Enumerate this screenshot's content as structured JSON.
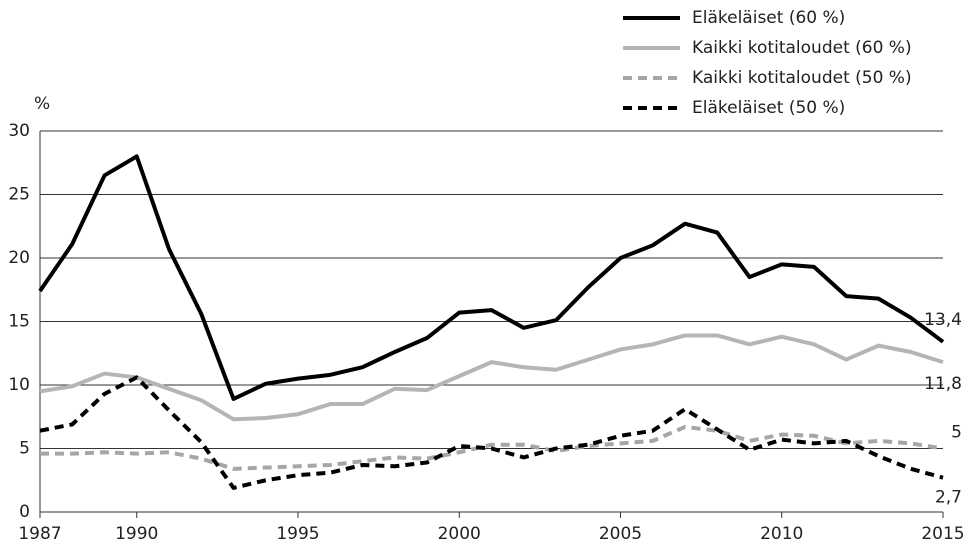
{
  "chart_data": {
    "type": "line",
    "y_label": "%",
    "x": [
      1987,
      1988,
      1989,
      1990,
      1991,
      1992,
      1993,
      1994,
      1995,
      1996,
      1997,
      1998,
      1999,
      2000,
      2001,
      2002,
      2003,
      2004,
      2005,
      2006,
      2007,
      2008,
      2009,
      2010,
      2011,
      2012,
      2013,
      2014,
      2015
    ],
    "xlim": [
      1987,
      2015
    ],
    "xticks": [
      1987,
      1990,
      1995,
      2000,
      2005,
      2010,
      2015
    ],
    "ylim": [
      0,
      30
    ],
    "yticks": [
      0,
      5,
      10,
      15,
      20,
      25,
      30
    ],
    "grid": true,
    "legend": "top-right",
    "series": [
      {
        "name": "Eläkeläiset (60 %)",
        "color": "#000000",
        "dashed": false,
        "values": [
          17.4,
          21.1,
          26.5,
          28.0,
          20.7,
          15.6,
          8.9,
          10.1,
          10.5,
          10.8,
          11.4,
          12.6,
          13.7,
          15.7,
          15.9,
          14.5,
          15.1,
          17.7,
          20.0,
          21.0,
          22.7,
          22.0,
          18.5,
          19.5,
          19.3,
          17.0,
          16.8,
          15.3,
          13.4
        ],
        "value_labels": [
          null,
          null,
          null,
          null,
          null,
          null,
          null,
          null,
          null,
          null,
          null,
          null,
          null,
          null,
          null,
          null,
          null,
          null,
          null,
          null,
          null,
          null,
          null,
          null,
          null,
          null,
          null,
          null,
          "13,4"
        ]
      },
      {
        "name": "Kaikki kotitaloudet (60 %)",
        "color": "#b5b5b5",
        "dashed": false,
        "values": [
          9.5,
          9.9,
          10.9,
          10.6,
          9.7,
          8.8,
          7.3,
          7.4,
          7.7,
          8.5,
          8.5,
          9.7,
          9.6,
          10.7,
          11.8,
          11.4,
          11.2,
          12.0,
          12.8,
          13.2,
          13.9,
          13.9,
          13.2,
          13.8,
          13.2,
          12.0,
          13.1,
          12.6,
          11.8
        ],
        "value_labels": [
          null,
          null,
          null,
          null,
          null,
          null,
          null,
          null,
          null,
          null,
          null,
          null,
          null,
          null,
          null,
          null,
          null,
          null,
          null,
          null,
          null,
          null,
          null,
          null,
          null,
          null,
          null,
          null,
          "11,8"
        ]
      },
      {
        "name": "Kaikki kotitaloudet (50 %)",
        "color": "#a6a6a6",
        "dashed": true,
        "values": [
          4.6,
          4.6,
          4.7,
          4.6,
          4.7,
          4.2,
          3.4,
          3.5,
          3.6,
          3.7,
          4.0,
          4.3,
          4.2,
          4.7,
          5.3,
          5.3,
          4.8,
          5.2,
          5.4,
          5.6,
          6.7,
          6.4,
          5.6,
          6.1,
          6.0,
          5.4,
          5.6,
          5.4,
          5.0
        ],
        "value_labels": [
          null,
          null,
          null,
          null,
          null,
          null,
          null,
          null,
          null,
          null,
          null,
          null,
          null,
          null,
          null,
          null,
          null,
          null,
          null,
          null,
          null,
          null,
          null,
          null,
          null,
          null,
          null,
          null,
          "5"
        ]
      },
      {
        "name": "Eläkeläiset (50 %)",
        "color": "#000000",
        "dashed": true,
        "values": [
          6.4,
          6.9,
          9.3,
          10.6,
          8.0,
          5.5,
          1.9,
          2.5,
          2.9,
          3.1,
          3.7,
          3.6,
          3.9,
          5.2,
          5.0,
          4.3,
          5.0,
          5.3,
          6.0,
          6.4,
          8.1,
          6.5,
          4.9,
          5.7,
          5.4,
          5.6,
          4.4,
          3.4,
          2.7
        ],
        "value_labels": [
          null,
          null,
          null,
          null,
          null,
          null,
          null,
          null,
          null,
          null,
          null,
          null,
          null,
          null,
          null,
          null,
          null,
          null,
          null,
          null,
          null,
          null,
          null,
          null,
          null,
          null,
          null,
          null,
          "2,7"
        ]
      }
    ]
  }
}
